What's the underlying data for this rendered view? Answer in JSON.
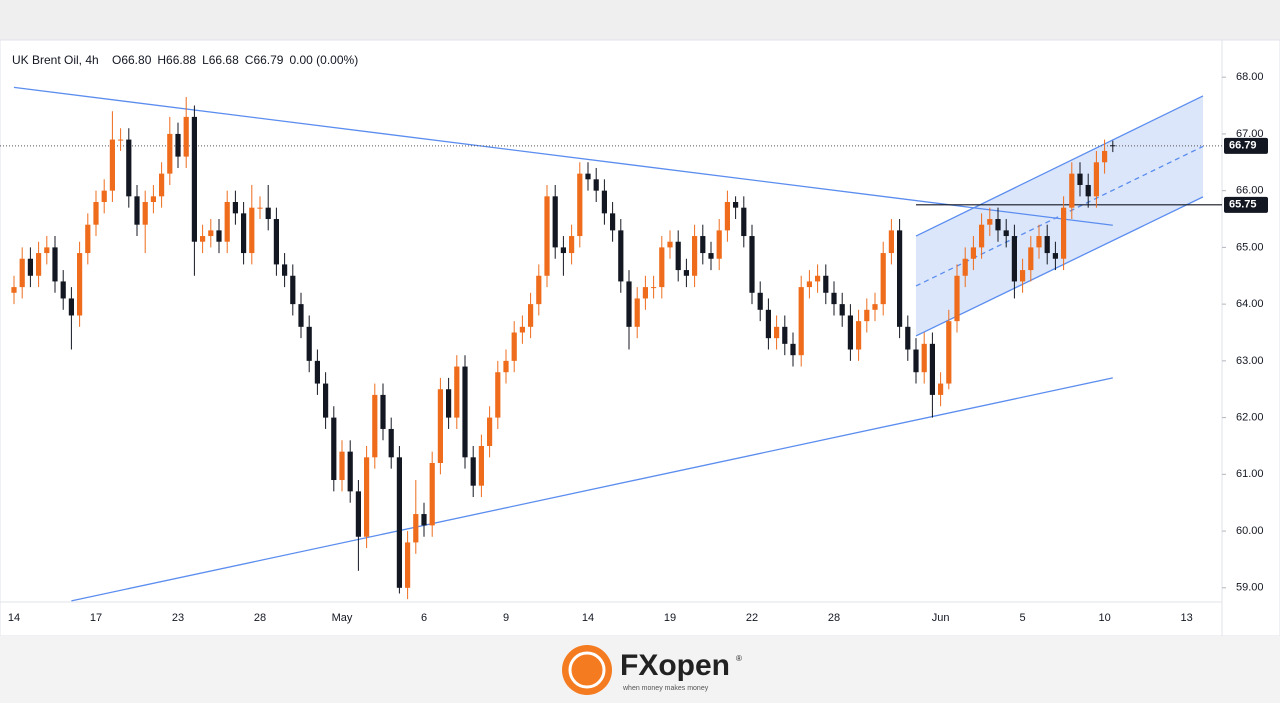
{
  "chart_data": {
    "type": "candlestick",
    "title": "UK Brent Oil, 4h",
    "header": [
      "O66.80",
      "H66.88",
      "L66.68",
      "C66.79",
      "0.00 (0.00%)"
    ],
    "up_color": "#ee6c1c",
    "down_color": "#131722",
    "categories": [
      "14",
      null,
      null,
      null,
      null,
      null,
      null,
      null,
      null,
      null,
      "17",
      null,
      null,
      null,
      null,
      null,
      null,
      null,
      null,
      null,
      "23",
      null,
      null,
      null,
      null,
      null,
      null,
      null,
      null,
      null,
      "28",
      null,
      null,
      null,
      null,
      null,
      null,
      null,
      null,
      null,
      "May",
      null,
      null,
      null,
      null,
      null,
      null,
      null,
      null,
      null,
      "6",
      null,
      null,
      null,
      null,
      null,
      null,
      null,
      null,
      null,
      "9",
      null,
      null,
      null,
      null,
      null,
      null,
      null,
      null,
      null,
      "14",
      null,
      null,
      null,
      null,
      null,
      null,
      null,
      null,
      null,
      "19",
      null,
      null,
      null,
      null,
      null,
      null,
      null,
      null,
      null,
      "22",
      null,
      null,
      null,
      null,
      null,
      null,
      null,
      null,
      null,
      "28",
      null,
      null,
      null,
      null,
      null,
      null,
      null,
      null,
      null,
      null,
      null,
      null,
      "Jun",
      null,
      null,
      null,
      null,
      null,
      null,
      null,
      null,
      null,
      "5",
      null,
      null,
      null,
      null,
      null,
      null,
      null,
      null,
      null,
      "10",
      null,
      null,
      null,
      null,
      null,
      null,
      null,
      null,
      null,
      "13"
    ],
    "open": [
      64.2,
      64.3,
      64.8,
      64.5,
      64.9,
      65.0,
      64.4,
      64.1,
      63.8,
      64.9,
      65.4,
      65.8,
      66.0,
      66.9,
      66.9,
      65.9,
      65.4,
      65.8,
      65.9,
      66.3,
      67.0,
      66.6,
      67.3,
      65.1,
      65.2,
      65.3,
      65.1,
      65.8,
      65.6,
      64.9,
      65.7,
      65.7,
      65.5,
      64.7,
      64.5,
      64.0,
      63.6,
      63.0,
      62.6,
      62.0,
      60.9,
      61.4,
      60.7,
      59.9,
      61.3,
      62.4,
      61.8,
      61.3,
      59.0,
      59.8,
      60.3,
      60.1,
      61.2,
      62.5,
      62.0,
      62.9,
      61.3,
      60.8,
      61.5,
      62.0,
      62.8,
      63.0,
      63.5,
      63.6,
      64.0,
      64.5,
      65.9,
      65.0,
      64.9,
      65.2,
      66.3,
      66.2,
      66.0,
      65.6,
      65.3,
      64.4,
      63.6,
      64.1,
      64.3,
      64.3,
      65.0,
      65.1,
      64.6,
      64.5,
      65.2,
      64.9,
      64.8,
      65.3,
      65.8,
      65.7,
      65.2,
      64.2,
      63.9,
      63.4,
      63.6,
      63.3,
      63.1,
      64.3,
      64.4,
      64.5,
      64.2,
      64.0,
      63.8,
      63.2,
      63.7,
      63.9,
      64.0,
      64.9,
      65.3,
      63.6,
      63.2,
      62.8,
      63.3,
      62.4,
      62.6,
      63.7,
      64.5,
      64.8,
      65.0,
      65.4,
      65.5,
      65.3,
      65.2,
      64.4,
      64.6,
      65.0,
      65.2,
      64.9,
      64.8,
      65.7,
      66.3,
      66.1,
      65.9,
      66.5,
      66.8,
      null,
      null,
      null,
      null,
      null,
      null,
      null,
      null,
      null
    ],
    "high": [
      64.5,
      65.0,
      65.0,
      65.1,
      65.2,
      65.2,
      64.6,
      64.3,
      65.1,
      65.6,
      66.0,
      66.2,
      67.4,
      67.1,
      67.1,
      66.1,
      66.0,
      66.1,
      66.5,
      67.3,
      67.2,
      67.65,
      67.5,
      65.4,
      65.5,
      65.5,
      66.0,
      66.0,
      65.8,
      66.1,
      65.9,
      66.1,
      65.7,
      64.9,
      64.7,
      64.2,
      63.8,
      63.2,
      62.8,
      62.2,
      61.6,
      61.6,
      60.9,
      61.5,
      62.6,
      62.6,
      62.0,
      61.5,
      60.0,
      60.9,
      60.5,
      61.4,
      62.7,
      62.7,
      63.1,
      63.1,
      61.5,
      61.7,
      62.2,
      63.0,
      63.2,
      63.7,
      63.8,
      64.2,
      64.7,
      66.1,
      66.1,
      65.2,
      65.4,
      66.5,
      66.5,
      66.4,
      66.2,
      65.8,
      65.5,
      64.6,
      64.3,
      64.5,
      64.5,
      65.2,
      65.3,
      65.3,
      64.8,
      65.4,
      65.4,
      65.1,
      65.5,
      66.0,
      65.9,
      65.9,
      65.4,
      64.4,
      64.1,
      63.8,
      63.8,
      63.5,
      64.5,
      64.6,
      64.7,
      64.7,
      64.4,
      64.2,
      64.0,
      63.9,
      64.1,
      64.2,
      65.1,
      65.5,
      65.5,
      63.8,
      63.4,
      63.5,
      63.5,
      62.8,
      63.9,
      64.7,
      65.0,
      65.2,
      65.6,
      65.7,
      65.7,
      65.5,
      65.4,
      64.8,
      65.2,
      65.4,
      65.4,
      65.1,
      65.9,
      66.5,
      66.5,
      66.3,
      66.7,
      66.9,
      66.88,
      null,
      null,
      null,
      null,
      null,
      null,
      null,
      null,
      null
    ],
    "low": [
      64.0,
      64.1,
      64.3,
      64.3,
      64.7,
      64.2,
      63.9,
      63.2,
      63.6,
      64.7,
      65.2,
      65.6,
      65.8,
      66.7,
      65.7,
      65.2,
      64.9,
      65.6,
      65.7,
      66.1,
      66.4,
      66.4,
      64.5,
      64.9,
      65.0,
      64.9,
      64.9,
      65.4,
      64.7,
      64.7,
      65.5,
      65.3,
      64.5,
      64.3,
      63.8,
      63.4,
      62.8,
      62.4,
      61.8,
      60.7,
      60.7,
      60.5,
      59.3,
      59.7,
      61.1,
      61.6,
      61.1,
      58.9,
      58.8,
      59.6,
      59.9,
      59.9,
      61.0,
      61.8,
      61.8,
      61.1,
      60.6,
      60.6,
      61.3,
      61.8,
      62.6,
      62.8,
      63.3,
      63.4,
      63.8,
      64.3,
      64.8,
      64.5,
      64.7,
      65.0,
      66.0,
      65.8,
      65.4,
      65.1,
      64.2,
      63.2,
      63.4,
      63.9,
      64.1,
      64.1,
      64.8,
      64.4,
      64.3,
      64.3,
      64.7,
      64.6,
      64.6,
      65.1,
      65.5,
      65.0,
      64.0,
      63.7,
      63.2,
      63.2,
      63.1,
      62.9,
      62.9,
      64.1,
      64.2,
      64.0,
      63.8,
      63.6,
      63.0,
      63.0,
      63.5,
      63.7,
      63.8,
      64.7,
      63.4,
      63.0,
      62.6,
      62.6,
      62.0,
      62.2,
      62.5,
      63.5,
      64.3,
      64.6,
      64.8,
      65.2,
      65.1,
      65.0,
      64.1,
      64.2,
      64.4,
      64.8,
      64.7,
      64.6,
      64.6,
      65.5,
      65.9,
      65.7,
      65.7,
      66.3,
      66.68,
      null,
      null,
      null,
      null,
      null,
      null,
      null,
      null,
      null
    ],
    "close": [
      64.3,
      64.8,
      64.5,
      64.9,
      65.0,
      64.4,
      64.1,
      63.8,
      64.9,
      65.4,
      65.8,
      66.0,
      66.9,
      66.9,
      65.9,
      65.4,
      65.8,
      65.9,
      66.3,
      67.0,
      66.6,
      67.3,
      65.1,
      65.2,
      65.3,
      65.1,
      65.8,
      65.6,
      64.9,
      65.7,
      65.7,
      65.5,
      64.7,
      64.5,
      64.0,
      63.6,
      63.0,
      62.6,
      62.0,
      60.9,
      61.4,
      60.7,
      59.9,
      61.3,
      62.4,
      61.8,
      61.3,
      59.0,
      59.8,
      60.3,
      60.1,
      61.2,
      62.5,
      62.0,
      62.9,
      61.3,
      60.8,
      61.5,
      62.0,
      62.8,
      63.0,
      63.5,
      63.6,
      64.0,
      64.5,
      65.9,
      65.0,
      64.9,
      65.2,
      66.3,
      66.2,
      66.0,
      65.6,
      65.3,
      64.4,
      63.6,
      64.1,
      64.3,
      64.3,
      65.0,
      65.1,
      64.6,
      64.5,
      65.2,
      64.9,
      64.8,
      65.3,
      65.8,
      65.7,
      65.2,
      64.2,
      63.9,
      63.4,
      63.6,
      63.3,
      63.1,
      64.3,
      64.4,
      64.5,
      64.2,
      64.0,
      63.8,
      63.2,
      63.7,
      63.9,
      64.0,
      64.9,
      65.3,
      63.6,
      63.2,
      62.8,
      63.3,
      62.4,
      62.6,
      63.7,
      64.5,
      64.8,
      65.0,
      65.4,
      65.5,
      65.3,
      65.2,
      64.4,
      64.6,
      65.0,
      65.2,
      64.9,
      64.8,
      65.7,
      66.3,
      66.1,
      65.9,
      66.5,
      66.7,
      66.79,
      null,
      null,
      null,
      null,
      null,
      null,
      null,
      null,
      null
    ],
    "ylim": [
      58.75,
      68.62
    ],
    "yticks": [
      {
        "value": 59,
        "label": "59.00"
      },
      {
        "value": 60,
        "label": "60.00"
      },
      {
        "value": 61,
        "label": "61.00"
      },
      {
        "value": 62,
        "label": "62.00"
      },
      {
        "value": 63,
        "label": "63.00"
      },
      {
        "value": 64,
        "label": "64.00"
      },
      {
        "value": 65,
        "label": "65.00"
      },
      {
        "value": 66,
        "label": "66.00"
      },
      {
        "value": 67,
        "label": "67.00"
      },
      {
        "value": 68,
        "label": "68.00"
      }
    ],
    "last_price": 66.79,
    "level": {
      "value": 65.75,
      "from": 110
    },
    "line_color": "#5b8def",
    "trendlines": [
      {
        "x": [
          0,
          134
        ],
        "y": [
          67.82,
          65.39
        ]
      },
      {
        "x": [
          7,
          134
        ],
        "y": [
          58.77,
          62.7
        ]
      }
    ],
    "channel": {
      "x": [
        110,
        145
      ],
      "upper": [
        65.2,
        67.67
      ],
      "middle": [
        64.32,
        66.78
      ],
      "lower": [
        63.44,
        65.89
      ]
    }
  },
  "logo": {
    "name": "FXopen",
    "mark": "®",
    "tagline": "when money makes money"
  }
}
